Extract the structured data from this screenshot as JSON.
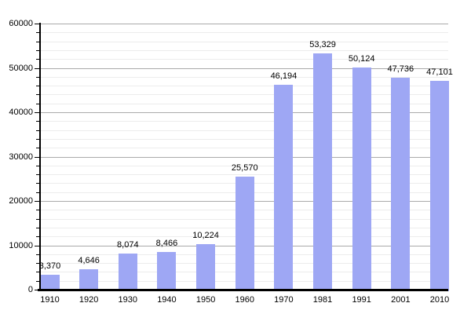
{
  "chart_data": {
    "type": "bar",
    "title": "",
    "xlabel": "",
    "ylabel": "",
    "categories": [
      "1910",
      "1920",
      "1930",
      "1940",
      "1950",
      "1960",
      "1970",
      "1981",
      "1991",
      "2001",
      "2010"
    ],
    "values": [
      3370,
      4646,
      8074,
      8466,
      10224,
      25570,
      46194,
      53329,
      50124,
      47736,
      47101
    ],
    "value_labels": [
      "3,370",
      "4,646",
      "8,074",
      "8,466",
      "10,224",
      "25,570",
      "46,194",
      "53,329",
      "50,124",
      "47,736",
      "47,101"
    ],
    "ylim": [
      0,
      60000
    ],
    "y_major_step": 10000,
    "y_minor_step": 2000,
    "y_tick_labels": [
      "0",
      "10000",
      "20000",
      "30000",
      "40000",
      "50000",
      "60000"
    ],
    "grid": "on",
    "legend": "none",
    "colors": {
      "bar": "#9ea7f4",
      "grid_major": "#aaaaaa",
      "grid_minor": "#ececec",
      "axis": "#000000",
      "text": "#000000",
      "background": "#ffffff"
    }
  }
}
